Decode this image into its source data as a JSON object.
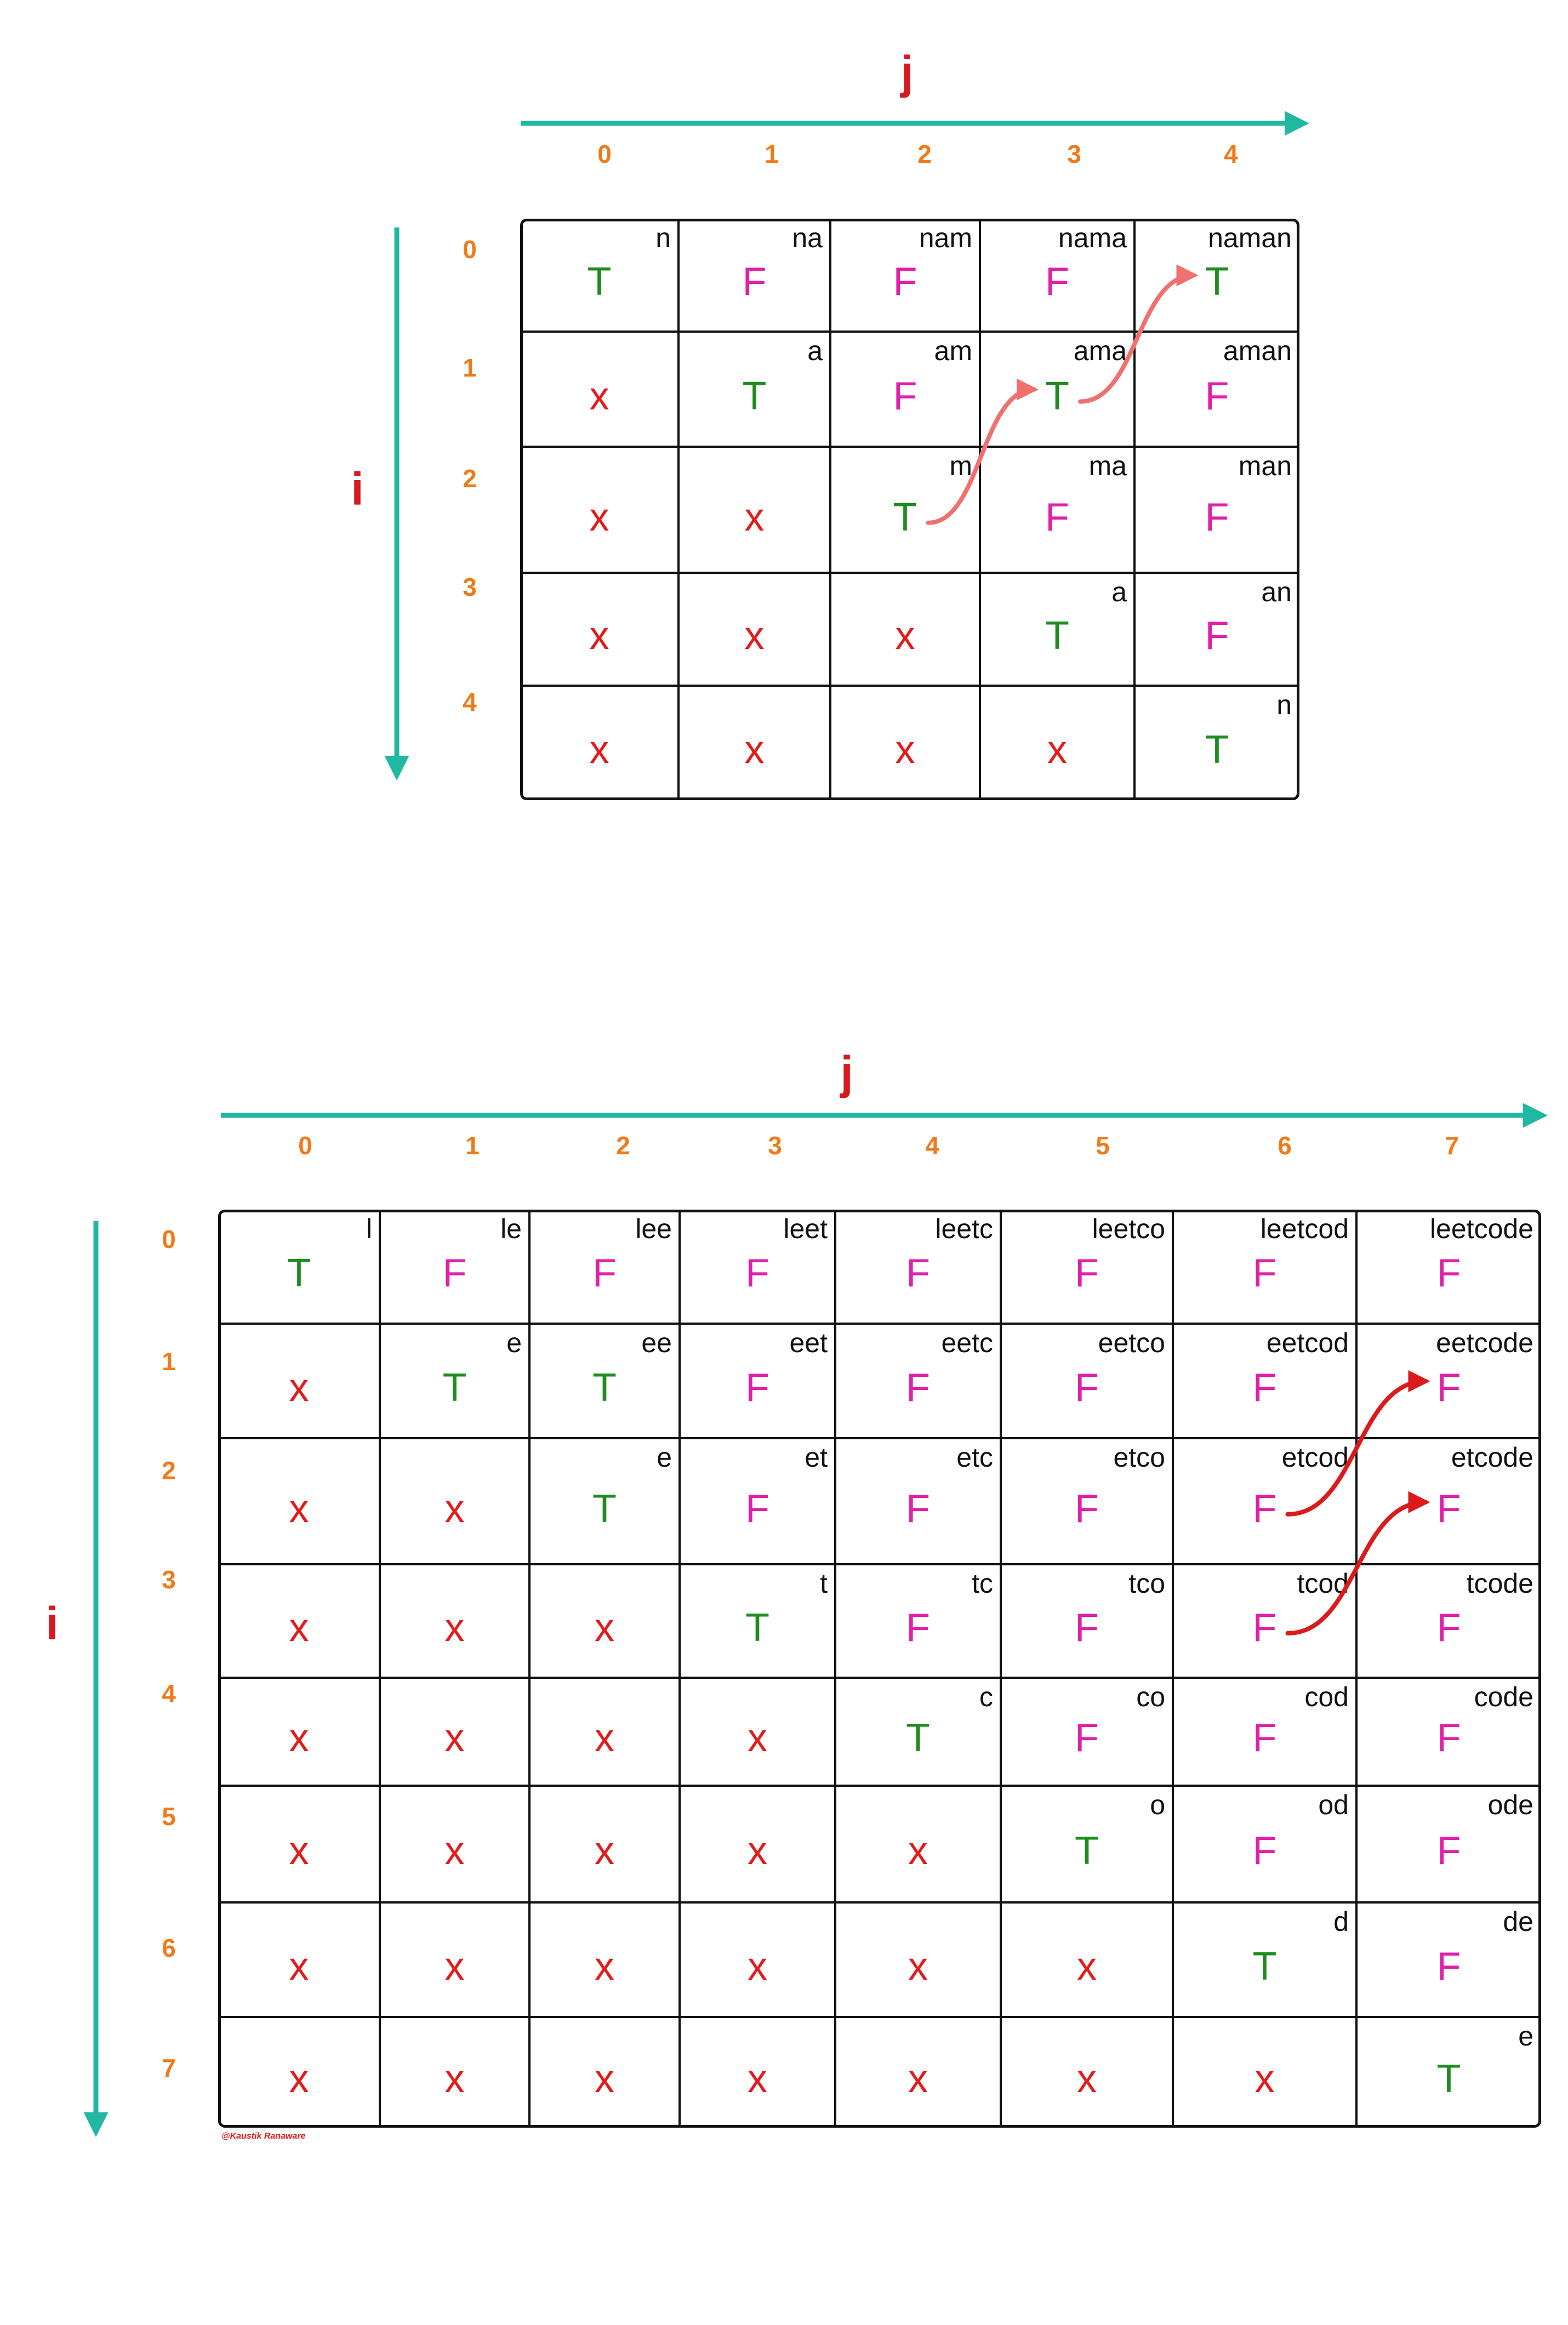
{
  "colors": {
    "axis": "#20b8a0",
    "axis_label": "#d71920",
    "index": "#f07a1a",
    "true": "#1e8c1e",
    "false": "#e020a8",
    "invalid": "#e31b1b",
    "arrow_top": "#f07070",
    "arrow_bottom": "#dd1a1a"
  },
  "diagrams": [
    {
      "col_axis_label": "j",
      "row_axis_label": "i",
      "col_indices": [
        "0",
        "1",
        "2",
        "3",
        "4"
      ],
      "row_indices": [
        "0",
        "1",
        "2",
        "3",
        "4"
      ],
      "cells": [
        [
          {
            "sub": "n",
            "val": "T"
          },
          {
            "sub": "na",
            "val": "F"
          },
          {
            "sub": "nam",
            "val": "F"
          },
          {
            "sub": "nama",
            "val": "F"
          },
          {
            "sub": "naman",
            "val": "T"
          }
        ],
        [
          {
            "sub": "",
            "val": "x"
          },
          {
            "sub": "a",
            "val": "T"
          },
          {
            "sub": "am",
            "val": "F"
          },
          {
            "sub": "ama",
            "val": "T"
          },
          {
            "sub": "aman",
            "val": "F"
          }
        ],
        [
          {
            "sub": "",
            "val": "x"
          },
          {
            "sub": "",
            "val": "x"
          },
          {
            "sub": "m",
            "val": "T"
          },
          {
            "sub": "ma",
            "val": "F"
          },
          {
            "sub": "man",
            "val": "F"
          }
        ],
        [
          {
            "sub": "",
            "val": "x"
          },
          {
            "sub": "",
            "val": "x"
          },
          {
            "sub": "",
            "val": "x"
          },
          {
            "sub": "a",
            "val": "T"
          },
          {
            "sub": "an",
            "val": "F"
          }
        ],
        [
          {
            "sub": "",
            "val": "x"
          },
          {
            "sub": "",
            "val": "x"
          },
          {
            "sub": "",
            "val": "x"
          },
          {
            "sub": "",
            "val": "x"
          },
          {
            "sub": "n",
            "val": "T"
          }
        ]
      ],
      "arrows": [
        {
          "from": [
            2,
            2
          ],
          "to": [
            1,
            3
          ]
        },
        {
          "from": [
            1,
            3
          ],
          "to": [
            0,
            4
          ]
        }
      ]
    },
    {
      "col_axis_label": "j",
      "row_axis_label": "i",
      "col_indices": [
        "0",
        "1",
        "2",
        "3",
        "4",
        "5",
        "6",
        "7"
      ],
      "row_indices": [
        "0",
        "1",
        "2",
        "3",
        "4",
        "5",
        "6",
        "7"
      ],
      "cells": [
        [
          {
            "sub": "l",
            "val": "T"
          },
          {
            "sub": "le",
            "val": "F"
          },
          {
            "sub": "lee",
            "val": "F"
          },
          {
            "sub": "leet",
            "val": "F"
          },
          {
            "sub": "leetc",
            "val": "F"
          },
          {
            "sub": "leetco",
            "val": "F"
          },
          {
            "sub": "leetcod",
            "val": "F"
          },
          {
            "sub": "leetcode",
            "val": "F"
          }
        ],
        [
          {
            "sub": "",
            "val": "x"
          },
          {
            "sub": "e",
            "val": "T"
          },
          {
            "sub": "ee",
            "val": "T"
          },
          {
            "sub": "eet",
            "val": "F"
          },
          {
            "sub": "eetc",
            "val": "F"
          },
          {
            "sub": "eetco",
            "val": "F"
          },
          {
            "sub": "eetcod",
            "val": "F"
          },
          {
            "sub": "eetcode",
            "val": "F"
          }
        ],
        [
          {
            "sub": "",
            "val": "x"
          },
          {
            "sub": "",
            "val": "x"
          },
          {
            "sub": "e",
            "val": "T"
          },
          {
            "sub": "et",
            "val": "F"
          },
          {
            "sub": "etc",
            "val": "F"
          },
          {
            "sub": "etco",
            "val": "F"
          },
          {
            "sub": "etcod",
            "val": "F"
          },
          {
            "sub": "etcode",
            "val": "F"
          }
        ],
        [
          {
            "sub": "",
            "val": "x"
          },
          {
            "sub": "",
            "val": "x"
          },
          {
            "sub": "",
            "val": "x"
          },
          {
            "sub": "t",
            "val": "T"
          },
          {
            "sub": "tc",
            "val": "F"
          },
          {
            "sub": "tco",
            "val": "F"
          },
          {
            "sub": "tcod",
            "val": "F"
          },
          {
            "sub": "tcode",
            "val": "F"
          }
        ],
        [
          {
            "sub": "",
            "val": "x"
          },
          {
            "sub": "",
            "val": "x"
          },
          {
            "sub": "",
            "val": "x"
          },
          {
            "sub": "",
            "val": "x"
          },
          {
            "sub": "c",
            "val": "T"
          },
          {
            "sub": "co",
            "val": "F"
          },
          {
            "sub": "cod",
            "val": "F"
          },
          {
            "sub": "code",
            "val": "F"
          }
        ],
        [
          {
            "sub": "",
            "val": "x"
          },
          {
            "sub": "",
            "val": "x"
          },
          {
            "sub": "",
            "val": "x"
          },
          {
            "sub": "",
            "val": "x"
          },
          {
            "sub": "",
            "val": "x"
          },
          {
            "sub": "o",
            "val": "T"
          },
          {
            "sub": "od",
            "val": "F"
          },
          {
            "sub": "ode",
            "val": "F"
          }
        ],
        [
          {
            "sub": "",
            "val": "x"
          },
          {
            "sub": "",
            "val": "x"
          },
          {
            "sub": "",
            "val": "x"
          },
          {
            "sub": "",
            "val": "x"
          },
          {
            "sub": "",
            "val": "x"
          },
          {
            "sub": "",
            "val": "x"
          },
          {
            "sub": "d",
            "val": "T"
          },
          {
            "sub": "de",
            "val": "F"
          }
        ],
        [
          {
            "sub": "",
            "val": "x"
          },
          {
            "sub": "",
            "val": "x"
          },
          {
            "sub": "",
            "val": "x"
          },
          {
            "sub": "",
            "val": "x"
          },
          {
            "sub": "",
            "val": "x"
          },
          {
            "sub": "",
            "val": "x"
          },
          {
            "sub": "",
            "val": "x"
          },
          {
            "sub": "e",
            "val": "T"
          }
        ]
      ],
      "arrows": [
        {
          "from": [
            2,
            6
          ],
          "to": [
            1,
            7
          ]
        },
        {
          "from": [
            3,
            6
          ],
          "to": [
            2,
            7
          ]
        }
      ]
    }
  ],
  "credit": "@Kaustik Ranaware"
}
